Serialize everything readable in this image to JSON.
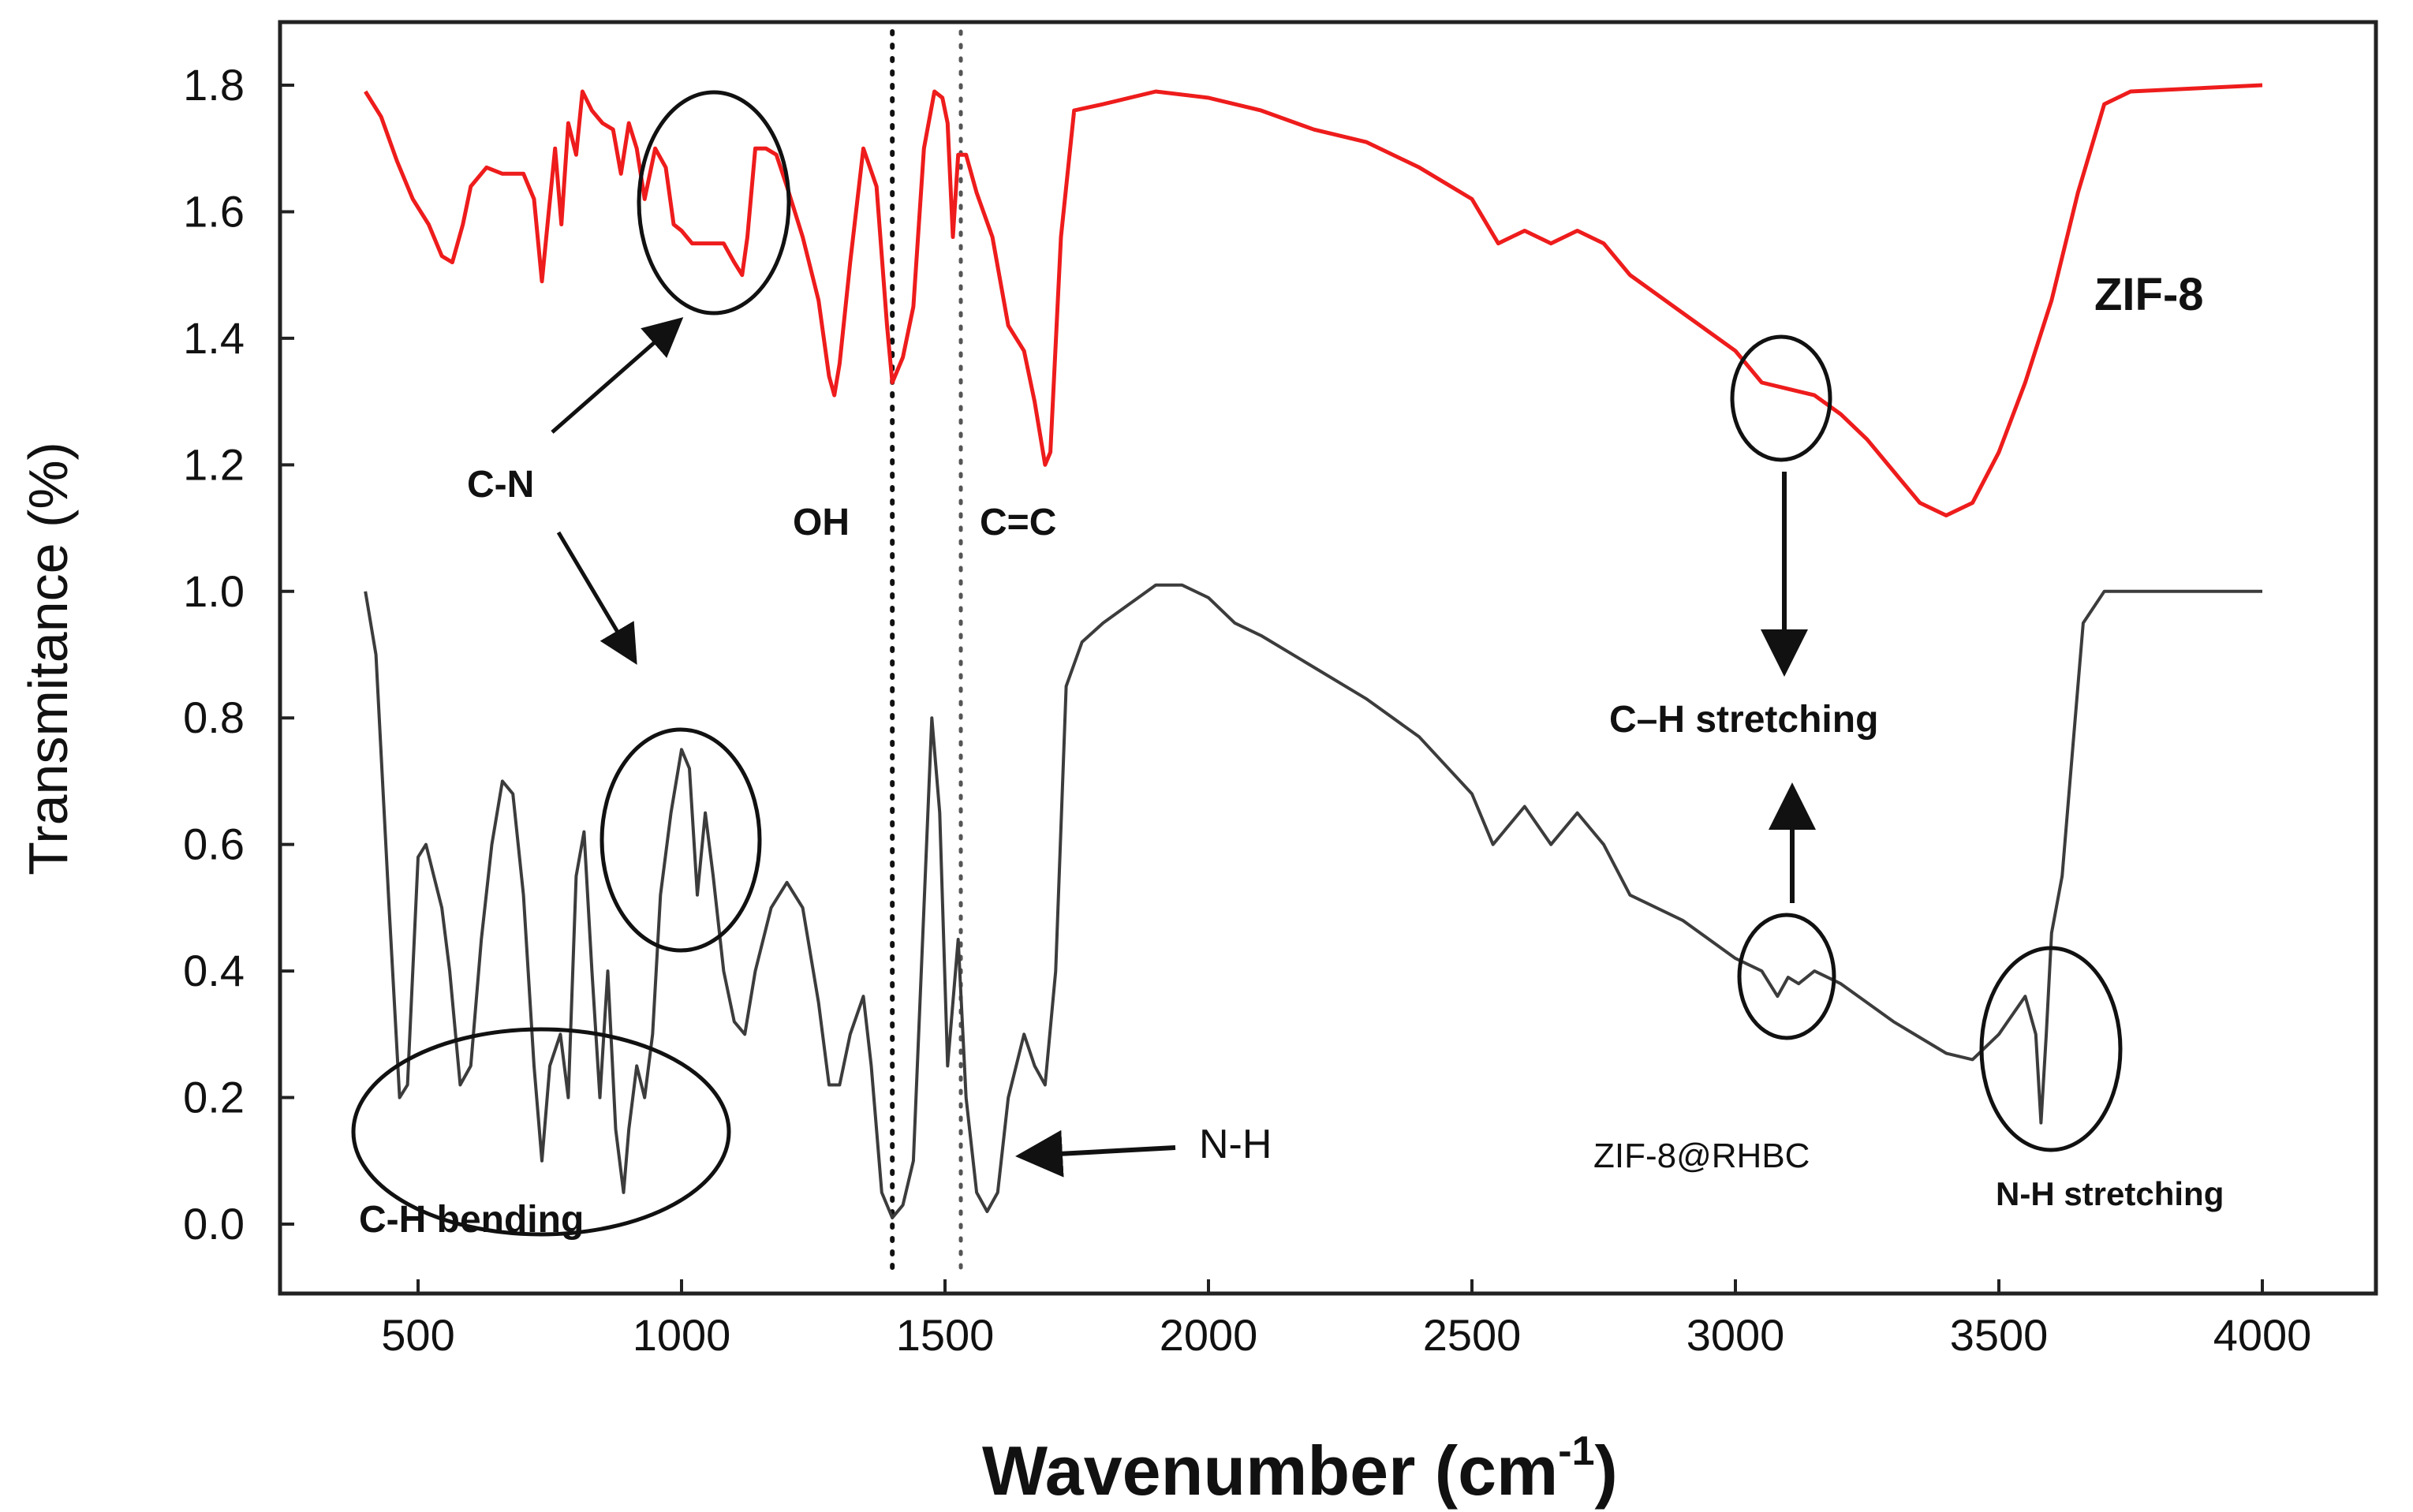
{
  "chart_data": {
    "type": "line",
    "title": "",
    "xlabel": "Wavenumber (cm",
    "xlabel_sup": "-1",
    "xlabel_close": ")",
    "ylabel": "Transmitance (%)",
    "xlim": [
      300,
      4200
    ],
    "ylim": [
      -0.1,
      1.9
    ],
    "xticks": [
      500,
      1000,
      1500,
      2000,
      2500,
      3000,
      3500,
      4000
    ],
    "yticks": [
      0.0,
      0.2,
      0.4,
      0.6,
      0.8,
      1.0,
      1.2,
      1.4,
      1.6,
      1.8
    ],
    "series": [
      {
        "name": "ZIF-8",
        "color": "#ee1c1c",
        "points": [
          [
            400,
            1.79
          ],
          [
            430,
            1.75
          ],
          [
            460,
            1.68
          ],
          [
            490,
            1.62
          ],
          [
            520,
            1.58
          ],
          [
            545,
            1.53
          ],
          [
            565,
            1.52
          ],
          [
            585,
            1.58
          ],
          [
            600,
            1.64
          ],
          [
            630,
            1.67
          ],
          [
            660,
            1.66
          ],
          [
            700,
            1.66
          ],
          [
            720,
            1.62
          ],
          [
            735,
            1.49
          ],
          [
            748,
            1.6
          ],
          [
            760,
            1.7
          ],
          [
            772,
            1.58
          ],
          [
            785,
            1.74
          ],
          [
            800,
            1.69
          ],
          [
            812,
            1.79
          ],
          [
            830,
            1.76
          ],
          [
            850,
            1.74
          ],
          [
            870,
            1.73
          ],
          [
            885,
            1.66
          ],
          [
            900,
            1.74
          ],
          [
            915,
            1.7
          ],
          [
            930,
            1.62
          ],
          [
            950,
            1.7
          ],
          [
            970,
            1.67
          ],
          [
            985,
            1.58
          ],
          [
            1000,
            1.57
          ],
          [
            1020,
            1.55
          ],
          [
            1040,
            1.55
          ],
          [
            1060,
            1.55
          ],
          [
            1080,
            1.55
          ],
          [
            1100,
            1.52
          ],
          [
            1115,
            1.5
          ],
          [
            1125,
            1.56
          ],
          [
            1140,
            1.7
          ],
          [
            1160,
            1.7
          ],
          [
            1180,
            1.69
          ],
          [
            1200,
            1.64
          ],
          [
            1230,
            1.56
          ],
          [
            1260,
            1.46
          ],
          [
            1280,
            1.34
          ],
          [
            1290,
            1.31
          ],
          [
            1300,
            1.36
          ],
          [
            1320,
            1.52
          ],
          [
            1345,
            1.7
          ],
          [
            1370,
            1.64
          ],
          [
            1390,
            1.42
          ],
          [
            1400,
            1.33
          ],
          [
            1410,
            1.35
          ],
          [
            1420,
            1.37
          ],
          [
            1440,
            1.45
          ],
          [
            1460,
            1.7
          ],
          [
            1480,
            1.79
          ],
          [
            1495,
            1.78
          ],
          [
            1505,
            1.74
          ],
          [
            1515,
            1.56
          ],
          [
            1525,
            1.69
          ],
          [
            1540,
            1.69
          ],
          [
            1560,
            1.63
          ],
          [
            1590,
            1.56
          ],
          [
            1620,
            1.42
          ],
          [
            1650,
            1.38
          ],
          [
            1670,
            1.3
          ],
          [
            1690,
            1.2
          ],
          [
            1700,
            1.22
          ],
          [
            1720,
            1.56
          ],
          [
            1745,
            1.76
          ],
          [
            1800,
            1.77
          ],
          [
            1900,
            1.79
          ],
          [
            2000,
            1.78
          ],
          [
            2100,
            1.76
          ],
          [
            2200,
            1.73
          ],
          [
            2300,
            1.71
          ],
          [
            2400,
            1.67
          ],
          [
            2500,
            1.62
          ],
          [
            2550,
            1.55
          ],
          [
            2600,
            1.57
          ],
          [
            2650,
            1.55
          ],
          [
            2700,
            1.57
          ],
          [
            2750,
            1.55
          ],
          [
            2800,
            1.5
          ],
          [
            2900,
            1.44
          ],
          [
            3000,
            1.38
          ],
          [
            3050,
            1.33
          ],
          [
            3100,
            1.32
          ],
          [
            3150,
            1.31
          ],
          [
            3200,
            1.28
          ],
          [
            3250,
            1.24
          ],
          [
            3300,
            1.19
          ],
          [
            3350,
            1.14
          ],
          [
            3400,
            1.12
          ],
          [
            3450,
            1.14
          ],
          [
            3500,
            1.22
          ],
          [
            3550,
            1.33
          ],
          [
            3600,
            1.46
          ],
          [
            3650,
            1.63
          ],
          [
            3700,
            1.77
          ],
          [
            3750,
            1.79
          ],
          [
            4000,
            1.8
          ]
        ]
      },
      {
        "name": "ZIF-8@RHBC",
        "color": "#3c3c3c",
        "points": [
          [
            400,
            1.0
          ],
          [
            420,
            0.9
          ],
          [
            445,
            0.5
          ],
          [
            465,
            0.2
          ],
          [
            480,
            0.22
          ],
          [
            500,
            0.58
          ],
          [
            515,
            0.6
          ],
          [
            530,
            0.55
          ],
          [
            545,
            0.5
          ],
          [
            560,
            0.4
          ],
          [
            580,
            0.22
          ],
          [
            600,
            0.25
          ],
          [
            620,
            0.45
          ],
          [
            640,
            0.6
          ],
          [
            660,
            0.7
          ],
          [
            680,
            0.68
          ],
          [
            700,
            0.52
          ],
          [
            720,
            0.25
          ],
          [
            735,
            0.1
          ],
          [
            750,
            0.25
          ],
          [
            770,
            0.3
          ],
          [
            785,
            0.2
          ],
          [
            800,
            0.55
          ],
          [
            815,
            0.62
          ],
          [
            830,
            0.4
          ],
          [
            845,
            0.2
          ],
          [
            860,
            0.4
          ],
          [
            875,
            0.15
          ],
          [
            890,
            0.05
          ],
          [
            900,
            0.15
          ],
          [
            915,
            0.25
          ],
          [
            930,
            0.2
          ],
          [
            945,
            0.3
          ],
          [
            960,
            0.52
          ],
          [
            980,
            0.65
          ],
          [
            1000,
            0.75
          ],
          [
            1015,
            0.72
          ],
          [
            1030,
            0.52
          ],
          [
            1045,
            0.65
          ],
          [
            1060,
            0.55
          ],
          [
            1080,
            0.4
          ],
          [
            1100,
            0.32
          ],
          [
            1120,
            0.3
          ],
          [
            1140,
            0.4
          ],
          [
            1170,
            0.5
          ],
          [
            1200,
            0.54
          ],
          [
            1230,
            0.5
          ],
          [
            1260,
            0.35
          ],
          [
            1280,
            0.22
          ],
          [
            1300,
            0.22
          ],
          [
            1320,
            0.3
          ],
          [
            1345,
            0.36
          ],
          [
            1360,
            0.25
          ],
          [
            1380,
            0.05
          ],
          [
            1400,
            0.01
          ],
          [
            1420,
            0.03
          ],
          [
            1440,
            0.1
          ],
          [
            1460,
            0.5
          ],
          [
            1475,
            0.8
          ],
          [
            1490,
            0.65
          ],
          [
            1505,
            0.25
          ],
          [
            1515,
            0.35
          ],
          [
            1525,
            0.45
          ],
          [
            1540,
            0.2
          ],
          [
            1560,
            0.05
          ],
          [
            1580,
            0.02
          ],
          [
            1600,
            0.05
          ],
          [
            1620,
            0.2
          ],
          [
            1650,
            0.3
          ],
          [
            1670,
            0.25
          ],
          [
            1690,
            0.22
          ],
          [
            1710,
            0.4
          ],
          [
            1730,
            0.85
          ],
          [
            1760,
            0.92
          ],
          [
            1800,
            0.95
          ],
          [
            1850,
            0.98
          ],
          [
            1900,
            1.01
          ],
          [
            1950,
            1.01
          ],
          [
            2000,
            0.99
          ],
          [
            2050,
            0.95
          ],
          [
            2100,
            0.93
          ],
          [
            2200,
            0.88
          ],
          [
            2300,
            0.83
          ],
          [
            2400,
            0.77
          ],
          [
            2500,
            0.68
          ],
          [
            2540,
            0.6
          ],
          [
            2560,
            0.62
          ],
          [
            2600,
            0.66
          ],
          [
            2650,
            0.6
          ],
          [
            2700,
            0.65
          ],
          [
            2750,
            0.6
          ],
          [
            2800,
            0.52
          ],
          [
            2900,
            0.48
          ],
          [
            3000,
            0.42
          ],
          [
            3050,
            0.4
          ],
          [
            3080,
            0.36
          ],
          [
            3100,
            0.39
          ],
          [
            3120,
            0.38
          ],
          [
            3150,
            0.4
          ],
          [
            3200,
            0.38
          ],
          [
            3300,
            0.32
          ],
          [
            3400,
            0.27
          ],
          [
            3450,
            0.26
          ],
          [
            3500,
            0.3
          ],
          [
            3550,
            0.36
          ],
          [
            3570,
            0.3
          ],
          [
            3580,
            0.16
          ],
          [
            3590,
            0.3
          ],
          [
            3600,
            0.46
          ],
          [
            3620,
            0.55
          ],
          [
            3640,
            0.75
          ],
          [
            3660,
            0.95
          ],
          [
            3700,
            1.0
          ],
          [
            3800,
            1.0
          ],
          [
            4000,
            1.0
          ]
        ]
      }
    ],
    "annotations": {
      "label_zif8": "ZIF-8",
      "label_zif8_rhbc": "ZIF-8@RHBC",
      "label_cn": "C-N",
      "label_oh": "OH",
      "label_cc": "C=C",
      "label_nh": "N-H",
      "label_ch_stretch": "C–H stretching",
      "label_ch_bend": "C-H bending",
      "label_nh_stretch": "N-H stretching"
    }
  }
}
